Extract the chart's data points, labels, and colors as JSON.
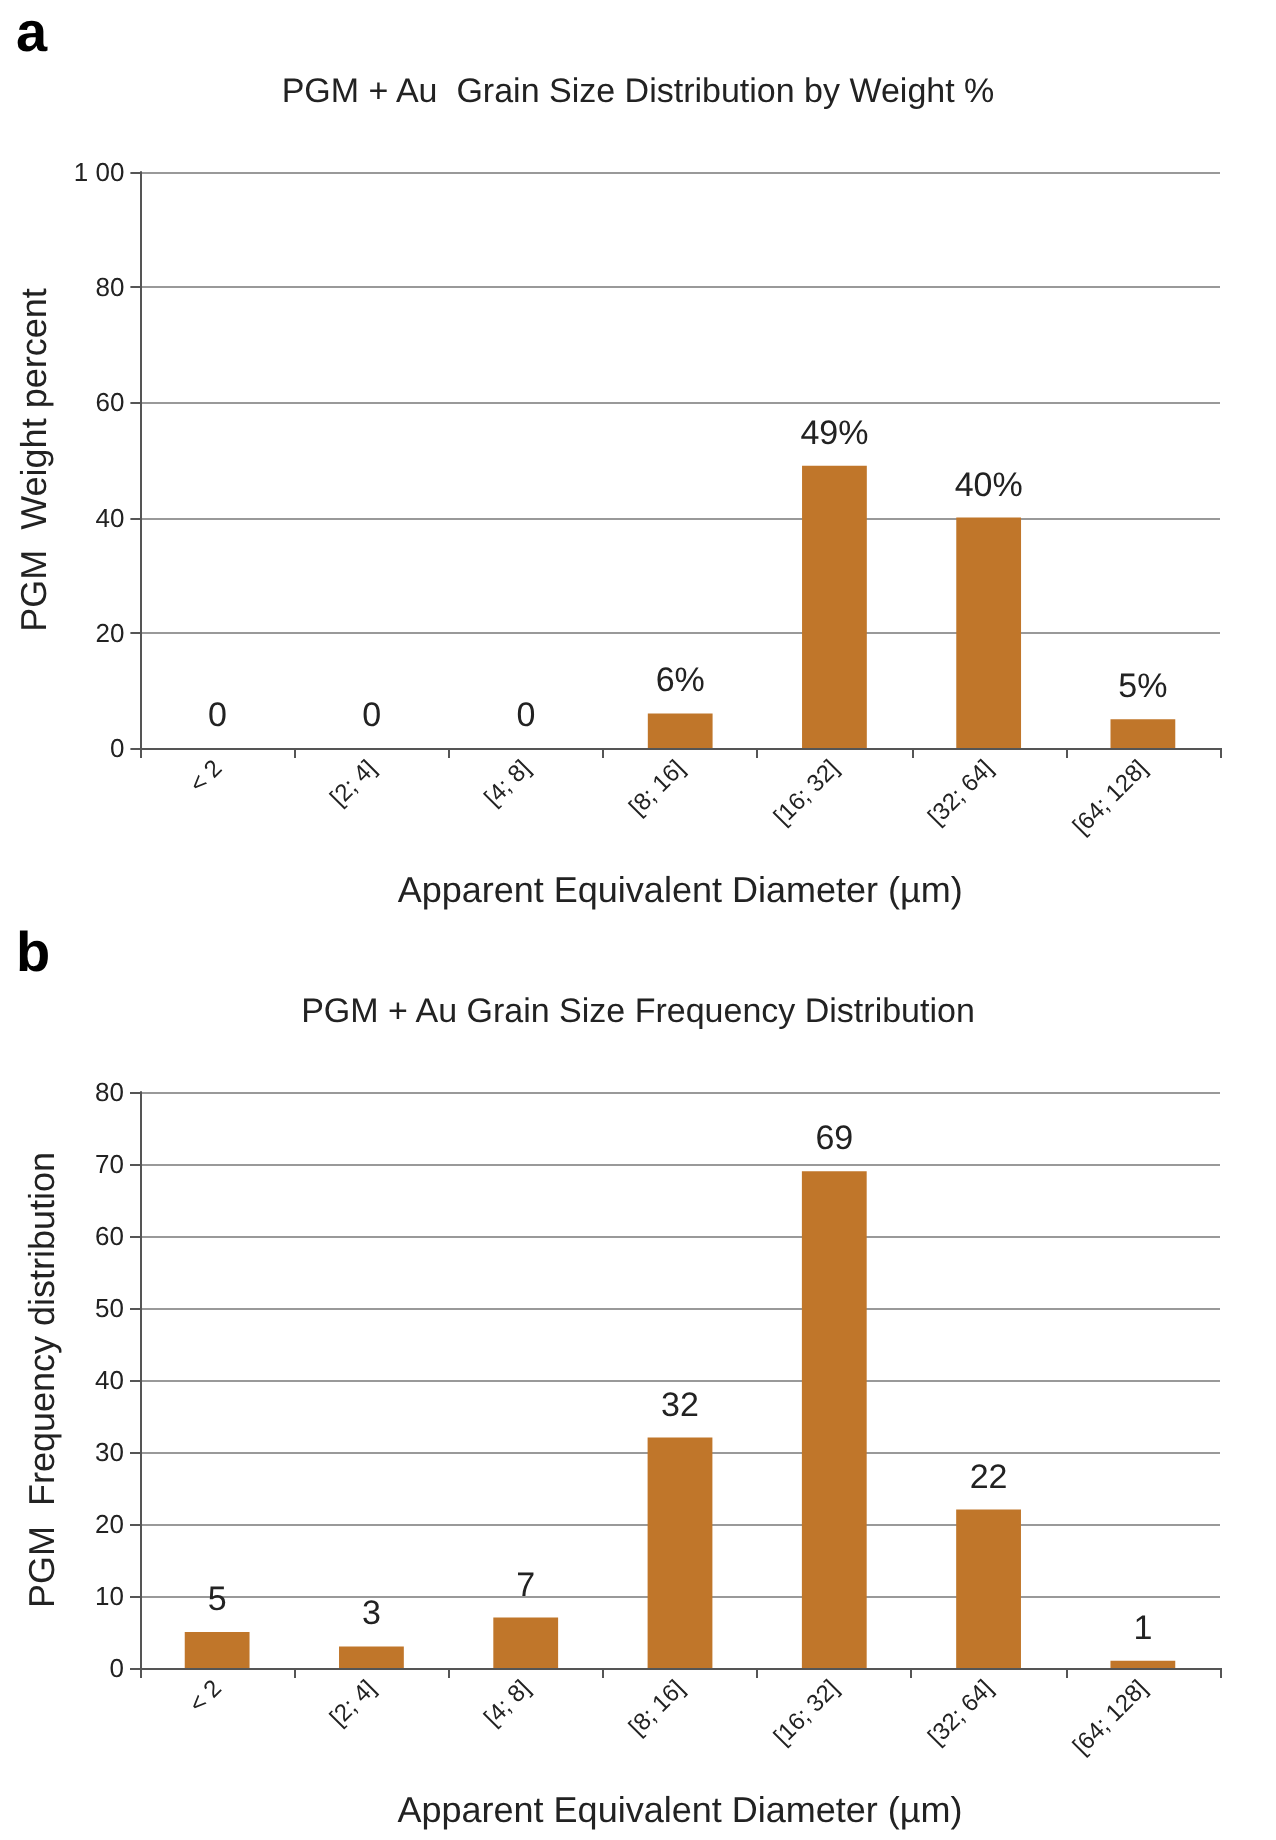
{
  "chart_data": [
    {
      "type": "bar",
      "title": "PGM + Au  Grain Size Distribution by Weight %",
      "xlabel": "Apparent Equivalent Diameter (µm)",
      "ylabel": "PGM  Weight percent",
      "annotations": [
        "a"
      ],
      "categories": [
        "< 2",
        "[2; 4]",
        "[4; 8]",
        "[8; 16]",
        "[16; 32]",
        "[32; 64]",
        "[64; 128]"
      ],
      "values": [
        0,
        0,
        0,
        6,
        49,
        40,
        5
      ],
      "value_labels": [
        "0",
        "0",
        "0",
        "6%",
        "49%",
        "40%",
        "5%"
      ],
      "color": "#c0762a",
      "ylim": [
        0,
        100
      ],
      "yticks": [
        0,
        20,
        40,
        60,
        80,
        {
          "value": 100,
          "label": "1 00"
        }
      ],
      "grid": "y"
    },
    {
      "type": "bar",
      "title": "PGM + Au Grain Size Frequency Distribution",
      "xlabel": "Apparent Equivalent Diameter (µm)",
      "ylabel": "PGM  Frequency distribution",
      "annotations": [
        "b"
      ],
      "categories": [
        "< 2",
        "[2; 4]",
        "[4; 8]",
        "[8; 16]",
        "[16; 32]",
        "[32; 64]",
        "[64; 128]"
      ],
      "values": [
        5,
        3,
        7,
        32,
        69,
        22,
        1
      ],
      "data_labels": true,
      "color": "#c0762a",
      "ylim": [
        0,
        80
      ],
      "yticks": [
        0,
        10,
        20,
        30,
        40,
        50,
        60,
        70,
        80
      ],
      "grid": "y"
    }
  ]
}
